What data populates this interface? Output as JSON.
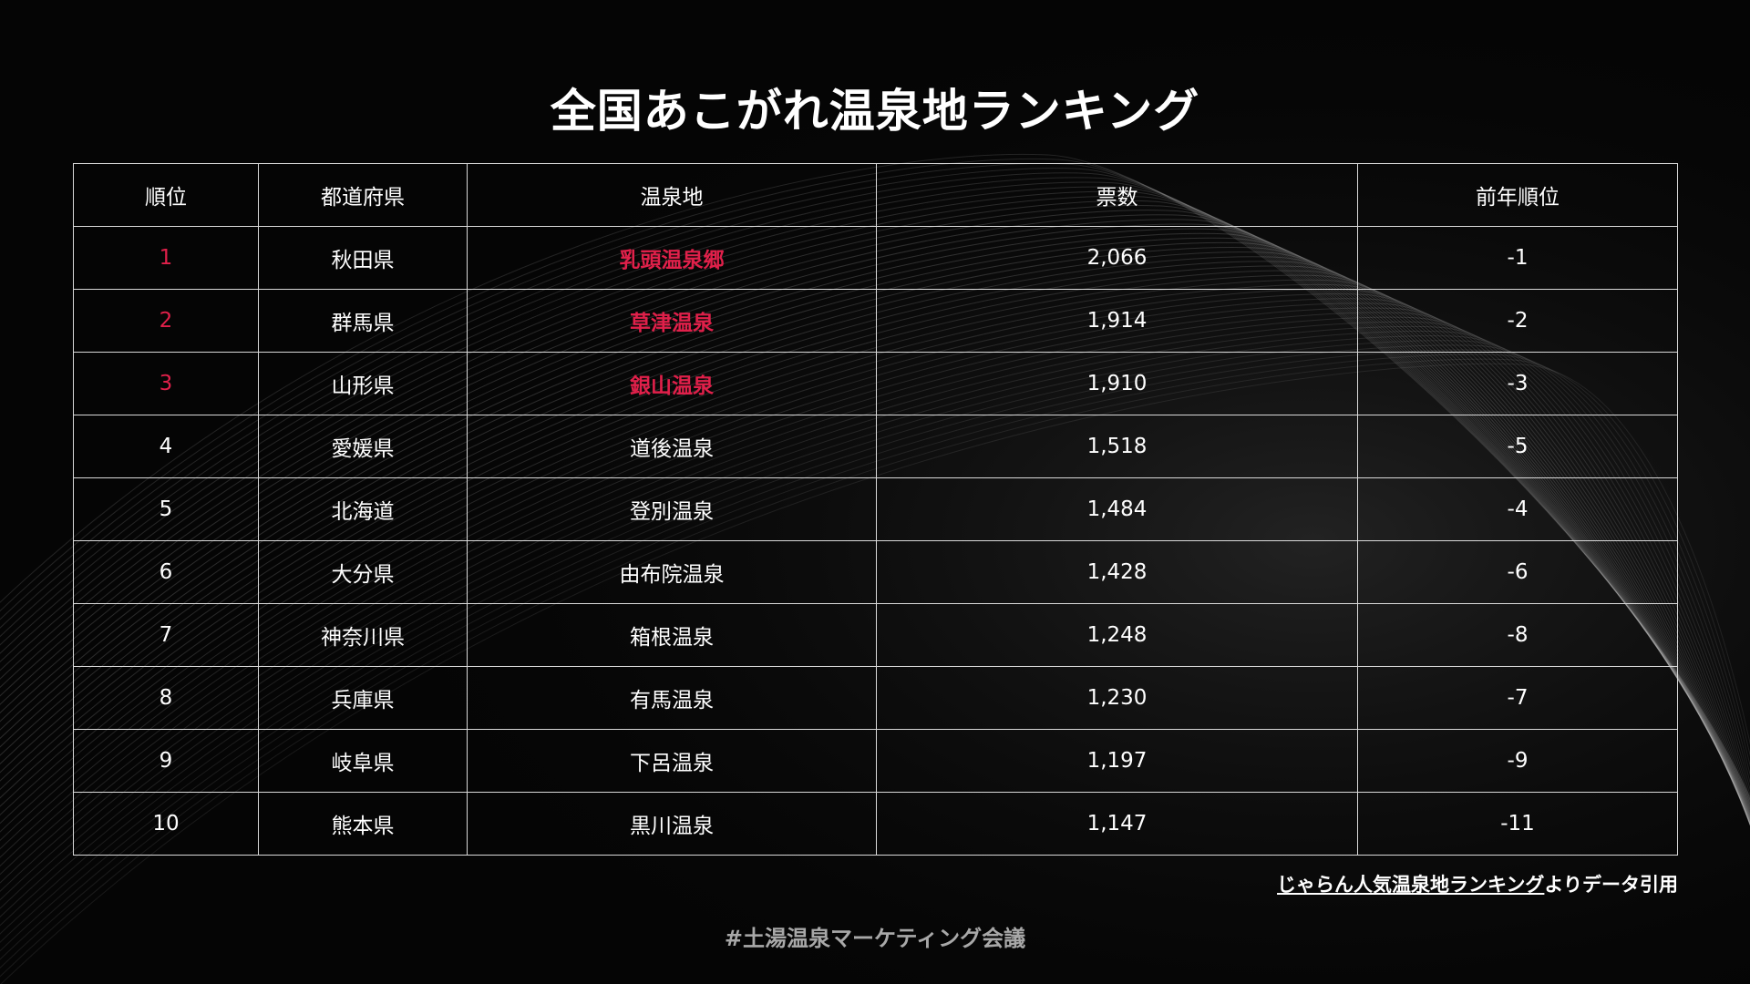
{
  "title": "全国あこがれ温泉地ランキング",
  "colors": {
    "background": "#050505",
    "text": "#ffffff",
    "highlight": "#e0204a",
    "border": "#d9d9d9",
    "footer": "#a8a8a8"
  },
  "table": {
    "headers": [
      "順位",
      "都道府県",
      "温泉地",
      "票数",
      "前年順位"
    ],
    "rows": [
      {
        "rank": "1",
        "prefecture": "秋田県",
        "onsen": "乳頭温泉郷",
        "votes": "2,066",
        "prev": "-1",
        "highlight": true
      },
      {
        "rank": "2",
        "prefecture": "群馬県",
        "onsen": "草津温泉",
        "votes": "1,914",
        "prev": "-2",
        "highlight": true
      },
      {
        "rank": "3",
        "prefecture": "山形県",
        "onsen": "銀山温泉",
        "votes": "1,910",
        "prev": "-3",
        "highlight": true
      },
      {
        "rank": "4",
        "prefecture": "愛媛県",
        "onsen": "道後温泉",
        "votes": "1,518",
        "prev": "-5",
        "highlight": false
      },
      {
        "rank": "5",
        "prefecture": "北海道",
        "onsen": "登別温泉",
        "votes": "1,484",
        "prev": "-4",
        "highlight": false
      },
      {
        "rank": "6",
        "prefecture": "大分県",
        "onsen": "由布院温泉",
        "votes": "1,428",
        "prev": "-6",
        "highlight": false
      },
      {
        "rank": "7",
        "prefecture": "神奈川県",
        "onsen": "箱根温泉",
        "votes": "1,248",
        "prev": "-8",
        "highlight": false
      },
      {
        "rank": "8",
        "prefecture": "兵庫県",
        "onsen": "有馬温泉",
        "votes": "1,230",
        "prev": "-7",
        "highlight": false
      },
      {
        "rank": "9",
        "prefecture": "岐阜県",
        "onsen": "下呂温泉",
        "votes": "1,197",
        "prev": "-9",
        "highlight": false
      },
      {
        "rank": "10",
        "prefecture": "熊本県",
        "onsen": "黒川温泉",
        "votes": "1,147",
        "prev": "-11",
        "highlight": false
      }
    ]
  },
  "source": {
    "link_text": "じゃらん人気温泉地ランキング",
    "suffix": "よりデータ引用"
  },
  "footer": "#土湯温泉マーケティング会議"
}
